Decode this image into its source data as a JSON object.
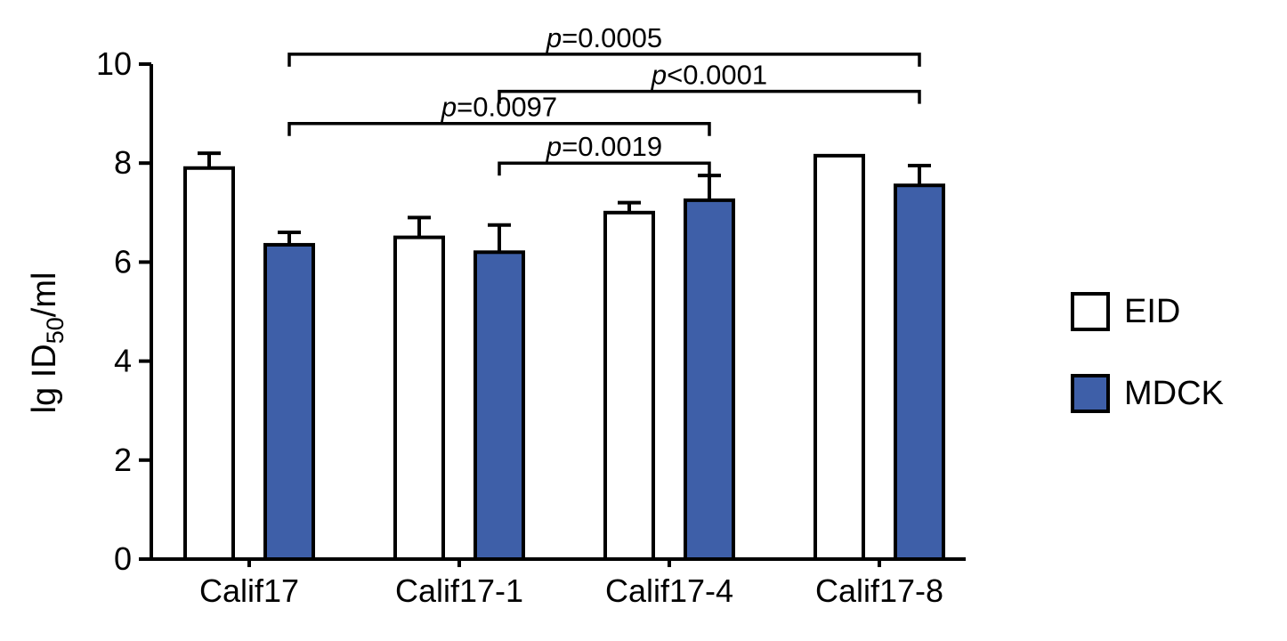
{
  "chart_data": {
    "type": "bar",
    "title": "",
    "xlabel": "",
    "ylabel": "lg ID50/ml",
    "ylabel_parts": {
      "pre": "lg ID",
      "sub": "50",
      "post": "/ml"
    },
    "ylim": [
      0,
      10
    ],
    "yticks": [
      0,
      2,
      4,
      6,
      8,
      10
    ],
    "grid": false,
    "legend_position": "right-middle",
    "bar_stroke": "#000000",
    "categories": [
      "Calif17",
      "Calif17-1",
      "Calif17-4",
      "Calif17-8"
    ],
    "series": [
      {
        "name": "EID",
        "fill": "#ffffff",
        "values": [
          7.9,
          6.5,
          7.0,
          8.15
        ],
        "errors_plus": [
          0.3,
          0.4,
          0.2,
          0
        ]
      },
      {
        "name": "MDCK",
        "fill": "#3e5fa8",
        "values": [
          6.35,
          6.2,
          7.25,
          7.55
        ],
        "errors_plus": [
          0.25,
          0.55,
          0.5,
          0.4
        ]
      }
    ],
    "significance_brackets": [
      {
        "label": "p=0.0005",
        "series": "MDCK",
        "from_category": 0,
        "to_category": 3,
        "y": 10.2
      },
      {
        "label": "p<0.0001",
        "series": "MDCK",
        "from_category": 1,
        "to_category": 3,
        "y": 9.45
      },
      {
        "label": "p=0.0097",
        "series": "MDCK",
        "from_category": 0,
        "to_category": 2,
        "y": 8.8
      },
      {
        "label": "p=0.0019",
        "series": "MDCK",
        "from_category": 1,
        "to_category": 2,
        "y": 8.0
      }
    ]
  }
}
